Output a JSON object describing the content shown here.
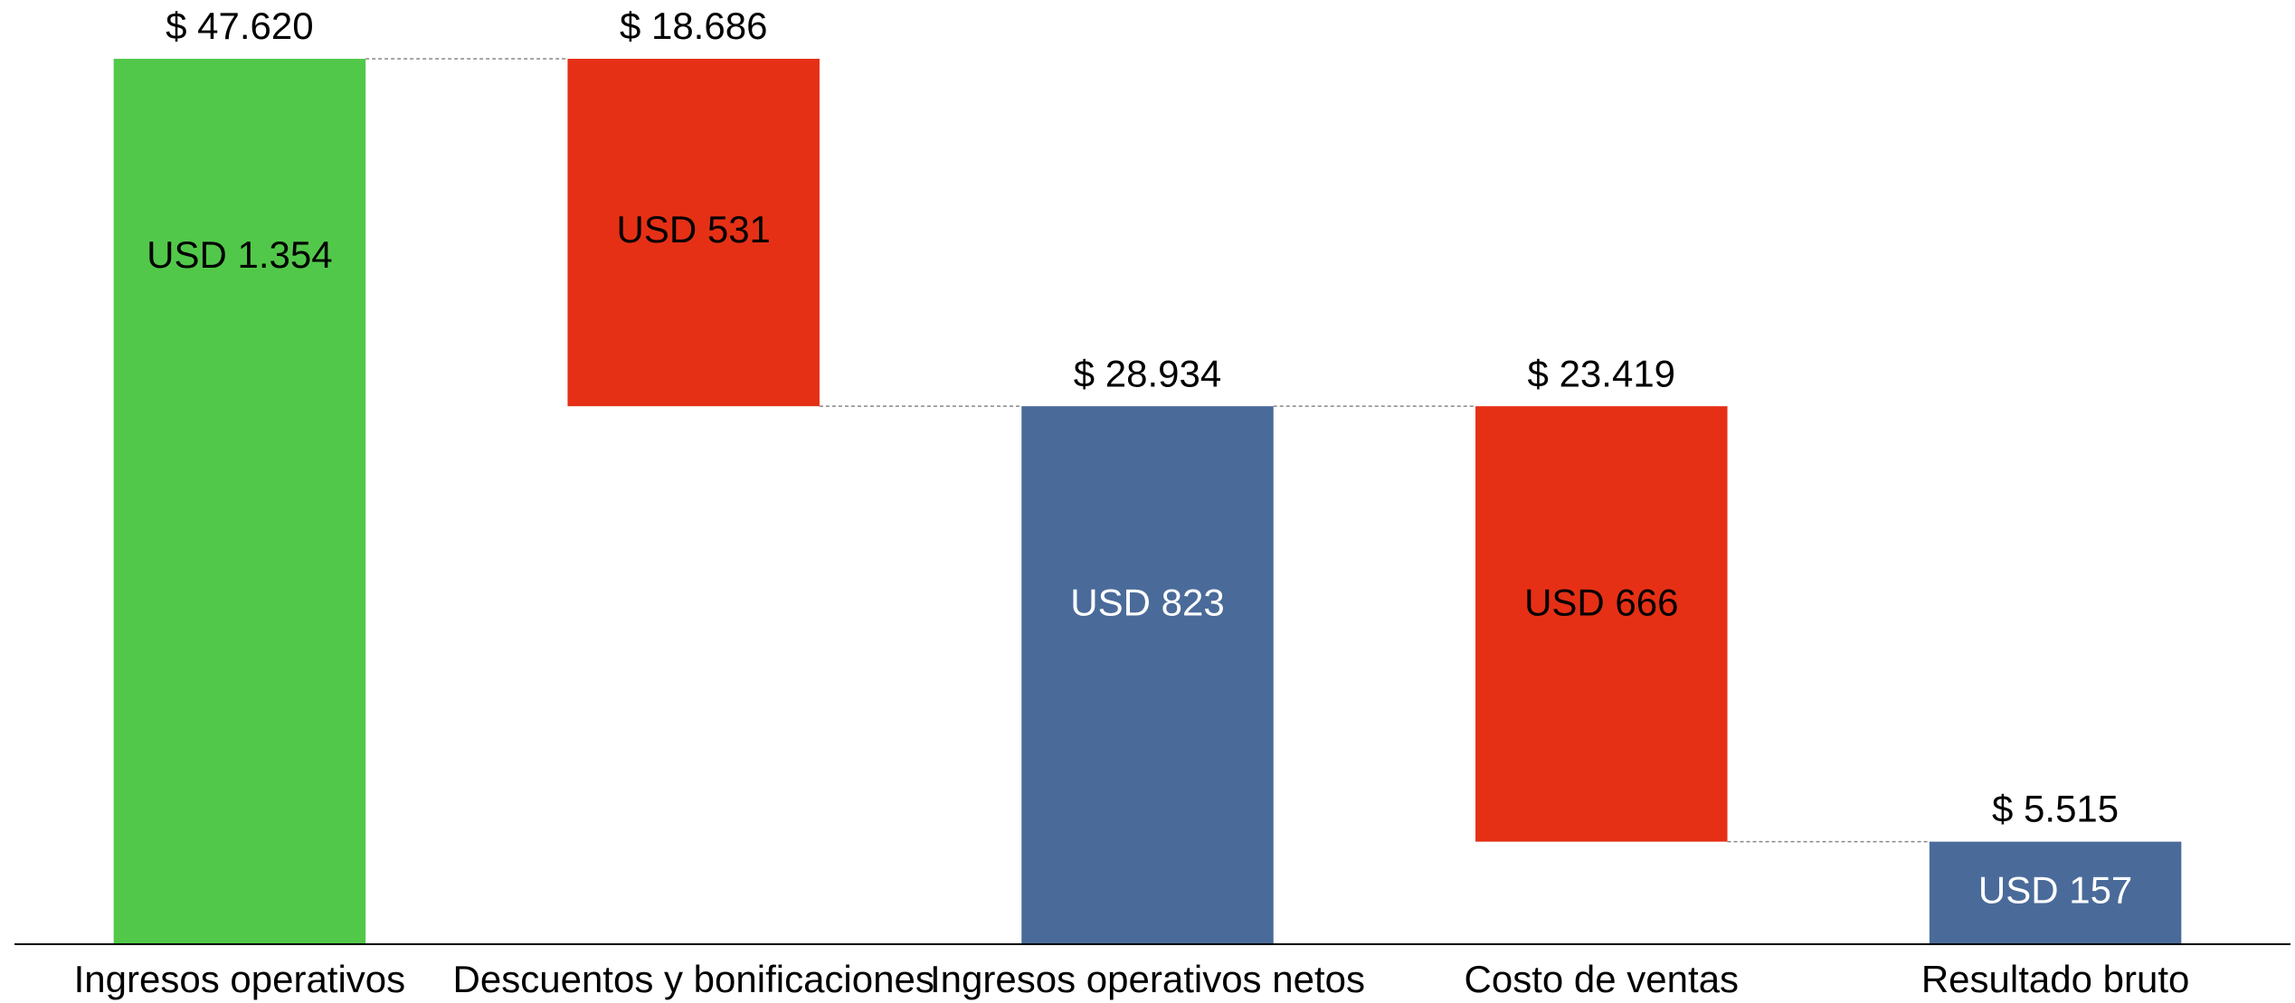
{
  "chart_data": {
    "type": "waterfall",
    "categories": [
      "Ingresos operativos",
      "Descuentos y bonificaciones",
      "Ingresos operativos netos",
      "Costo de ventas",
      "Resultado bruto"
    ],
    "values": [
      47620,
      18686,
      28934,
      23419,
      5515
    ],
    "value_labels": [
      "$ 47.620",
      "$ 18.686",
      "$ 28.934",
      "$ 23.419",
      "$ 5.515"
    ],
    "measure": [
      "absolute",
      "decrease",
      "total",
      "decrease",
      "total"
    ],
    "colors": [
      "#52c84a",
      "#e53016",
      "#4a6b9a",
      "#e53016",
      "#4a6b9a"
    ],
    "inner_labels": [
      "USD 1.354",
      "USD 531",
      "USD 823",
      "USD 666",
      "USD 157"
    ],
    "inner_label_colors": [
      "#000000",
      "#000000",
      "#ffffff",
      "#000000",
      "#ffffff"
    ]
  }
}
